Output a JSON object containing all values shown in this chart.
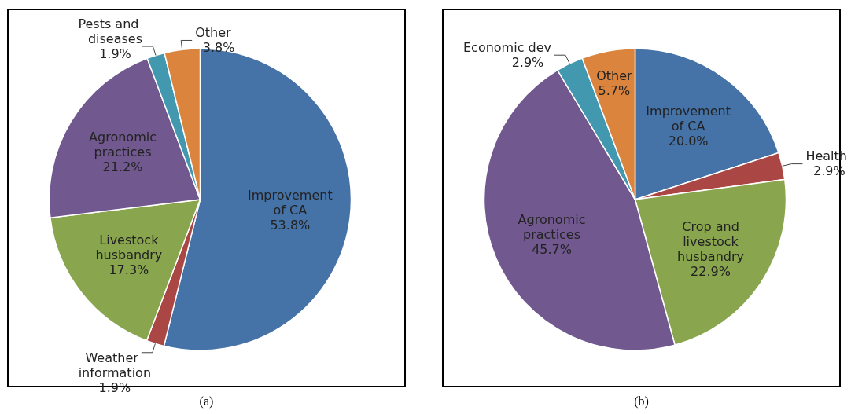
{
  "chart_data": [
    {
      "type": "pie",
      "categories": [
        "Improvement of CA",
        "Weather information",
        "Livestock husbandry",
        "Agronomic practices",
        "Pests and diseases",
        "Other"
      ],
      "values": [
        53.8,
        1.9,
        17.3,
        21.2,
        1.9,
        3.8
      ],
      "colors": [
        "#4572a7",
        "#aa4643",
        "#89a54e",
        "#71588f",
        "#4198af",
        "#db843d"
      ],
      "value_labels": [
        "53.8%",
        "1.9%",
        "17.3%",
        "21.2%",
        "1.9%",
        "3.8%"
      ],
      "annotations": [
        "(a)"
      ]
    },
    {
      "type": "pie",
      "categories": [
        "Improvement of CA",
        "Health",
        "Crop and livestock husbandry",
        "Agronomic practices",
        "Economic dev",
        "Other"
      ],
      "values": [
        20.0,
        2.9,
        22.9,
        45.7,
        2.9,
        5.7
      ],
      "colors": [
        "#4572a7",
        "#aa4643",
        "#89a54e",
        "#71588f",
        "#4198af",
        "#db843d"
      ],
      "value_labels": [
        "20.0%",
        "2.9%",
        "22.9%",
        "45.7%",
        "2.9%",
        "5.7%"
      ],
      "annotations": [
        "(b)"
      ]
    }
  ]
}
